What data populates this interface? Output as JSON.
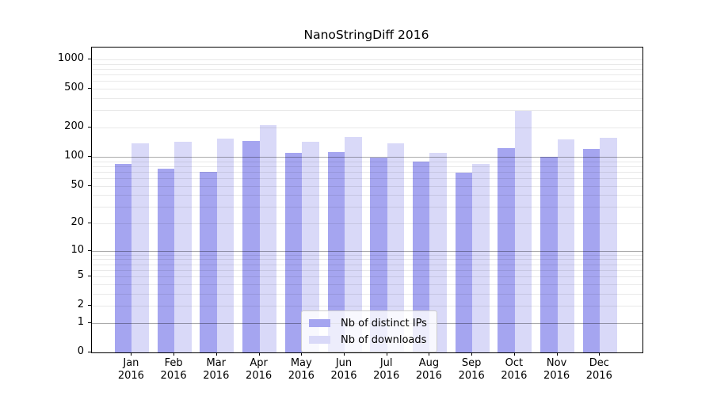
{
  "title": "NanoStringDiff 2016",
  "chart_data": {
    "type": "bar",
    "title": "NanoStringDiff 2016",
    "categories": [
      "Jan",
      "Feb",
      "Mar",
      "Apr",
      "May",
      "Jun",
      "Jul",
      "Aug",
      "Sep",
      "Oct",
      "Nov",
      "Dec"
    ],
    "category_year": "2016",
    "series": [
      {
        "name": "Nb of distinct IPs",
        "color": "#a5a5f0",
        "values": [
          85,
          75,
          70,
          145,
          110,
          112,
          98,
          90,
          68,
          122,
          100,
          120
        ]
      },
      {
        "name": "Nb of downloads",
        "color": "#d9d9f8",
        "values": [
          137,
          143,
          155,
          210,
          144,
          160,
          138,
          109,
          85,
          295,
          150,
          158
        ]
      }
    ],
    "xlabel": "",
    "ylabel": "",
    "yscale": "log10(value+1)",
    "yticks": [
      0,
      1,
      2,
      5,
      10,
      20,
      50,
      100,
      200,
      500,
      1000
    ],
    "major_gridlines": [
      1,
      10,
      100
    ],
    "minor_gridline_decades": [
      1,
      10,
      100
    ],
    "ylim": [
      0,
      1300
    ],
    "grid": true,
    "legend_position": "bottom-center",
    "colors": {
      "background": "#ffffff",
      "axis": "#000000",
      "grid_major": "#b0b0b0",
      "grid_minor": "#e9e9e9"
    }
  }
}
